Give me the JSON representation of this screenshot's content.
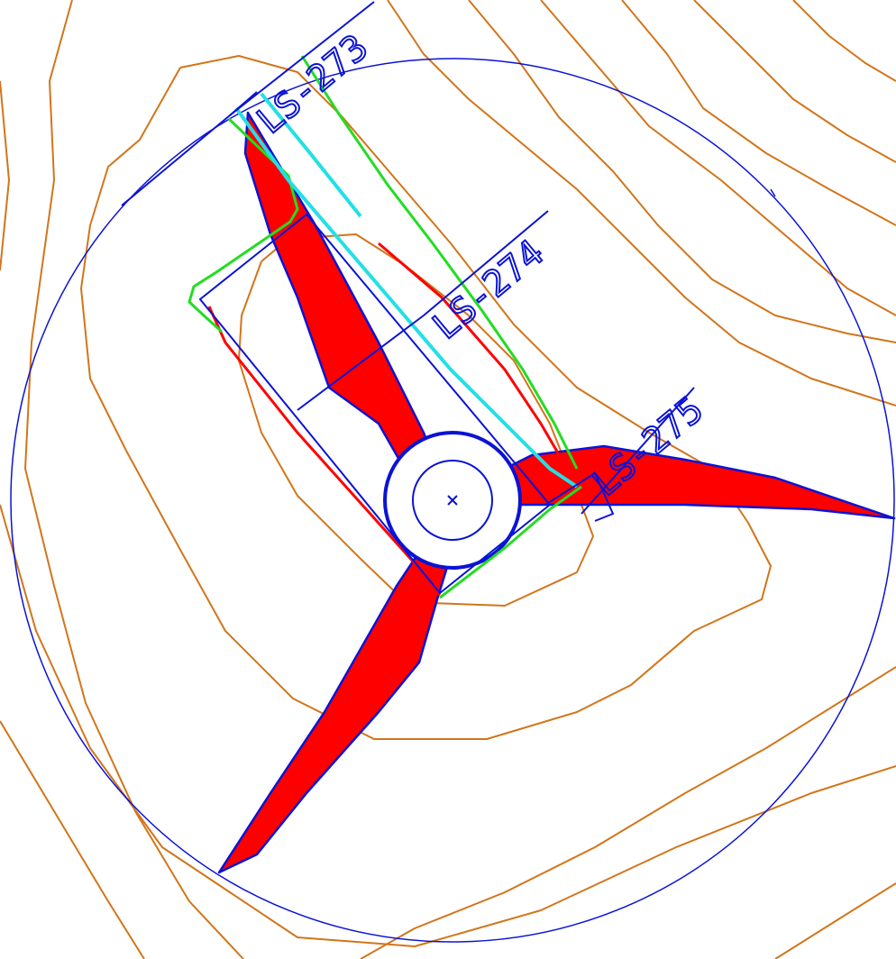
{
  "labels": {
    "ls273": "LS-273",
    "ls274": "LS-274",
    "ls275": "LS-275"
  },
  "colors": {
    "contour": "#d2751a",
    "outline": "#0b13d4",
    "blade": "#ff0000",
    "green": "#22dd22",
    "cyan": "#22e0e6",
    "background": "#ffffff"
  }
}
